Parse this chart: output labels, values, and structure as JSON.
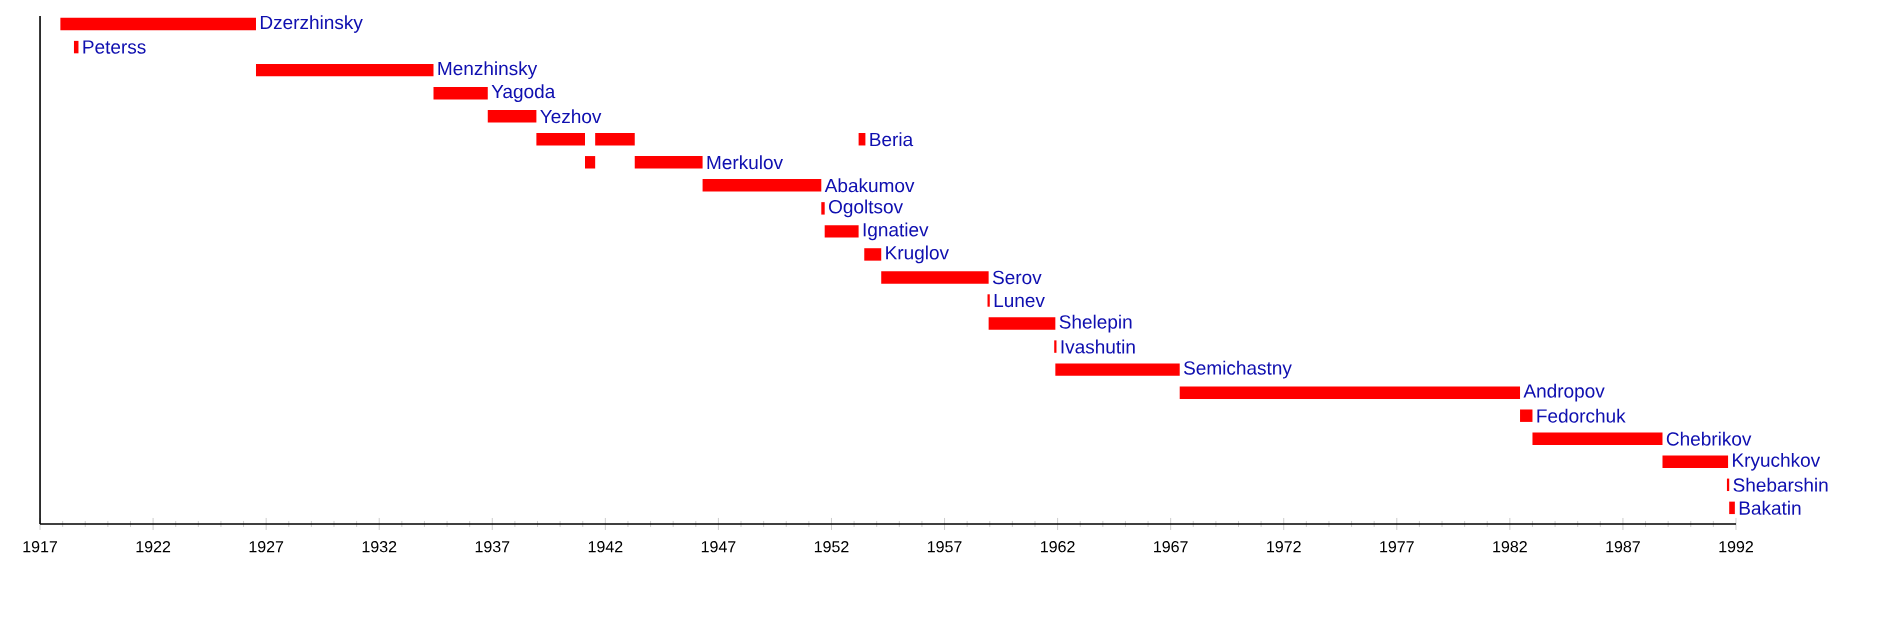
{
  "chart_data": {
    "type": "bar",
    "orientation": "horizontal",
    "categories": [
      "Dzerzhinsky",
      "Peterss",
      "Menzhinsky",
      "Yagoda",
      "Yezhov",
      "Beria",
      "Merkulov",
      "Abakumov",
      "Ogoltsov",
      "Ignatiev",
      "Kruglov",
      "Serov",
      "Lunev",
      "Shelepin",
      "Ivashutin",
      "Semichastny",
      "Andropov",
      "Fedorchuk",
      "Chebrikov",
      "Kryuchkov",
      "Shebarshin",
      "Bakatin"
    ],
    "series": [
      {
        "color": "#ff0000",
        "base": [
          1917.9,
          1918.5,
          1926.55,
          1934.4,
          1936.8,
          1938.95,
          1941.1,
          1946.3,
          1951.55,
          1951.7,
          1953.45,
          1954.2,
          1958.9,
          1958.95,
          1961.85,
          1961.9,
          1967.4,
          1982.45,
          1983.0,
          1988.75,
          1991.6,
          1991.7
        ],
        "values": [
          8.65,
          0.2,
          7.85,
          2.4,
          2.15,
          2.15,
          0.45,
          5.25,
          0.15,
          1.5,
          0.75,
          4.75,
          0.1,
          2.95,
          0.1,
          5.5,
          15.05,
          0.55,
          5.75,
          2.9,
          0.1,
          0.25
        ]
      },
      {
        "color": "#ff0000",
        "base": [
          null,
          null,
          null,
          null,
          null,
          1941.55,
          1943.3,
          null,
          null,
          null,
          null,
          null,
          null,
          null,
          null,
          null,
          null,
          null,
          null,
          null,
          null,
          null
        ],
        "values": [
          null,
          null,
          null,
          null,
          null,
          1.75,
          3.0,
          null,
          null,
          null,
          null,
          null,
          null,
          null,
          null,
          null,
          null,
          null,
          null,
          null,
          null,
          null
        ]
      },
      {
        "color": "#ff0000",
        "base": [
          null,
          null,
          null,
          null,
          null,
          1953.2,
          null,
          null,
          null,
          null,
          null,
          null,
          null,
          null,
          null,
          null,
          null,
          null,
          null,
          null,
          null,
          null
        ],
        "values": [
          null,
          null,
          null,
          null,
          null,
          0.3,
          null,
          null,
          null,
          null,
          null,
          null,
          null,
          null,
          null,
          null,
          null,
          null,
          null,
          null,
          null,
          null
        ]
      }
    ],
    "xlim": [
      1917,
      1992
    ],
    "xticks": [
      1917,
      1922,
      1927,
      1932,
      1937,
      1942,
      1947,
      1952,
      1957,
      1962,
      1967,
      1972,
      1977,
      1982,
      1987,
      1992
    ],
    "tick_labels": "x",
    "grid": false
  }
}
